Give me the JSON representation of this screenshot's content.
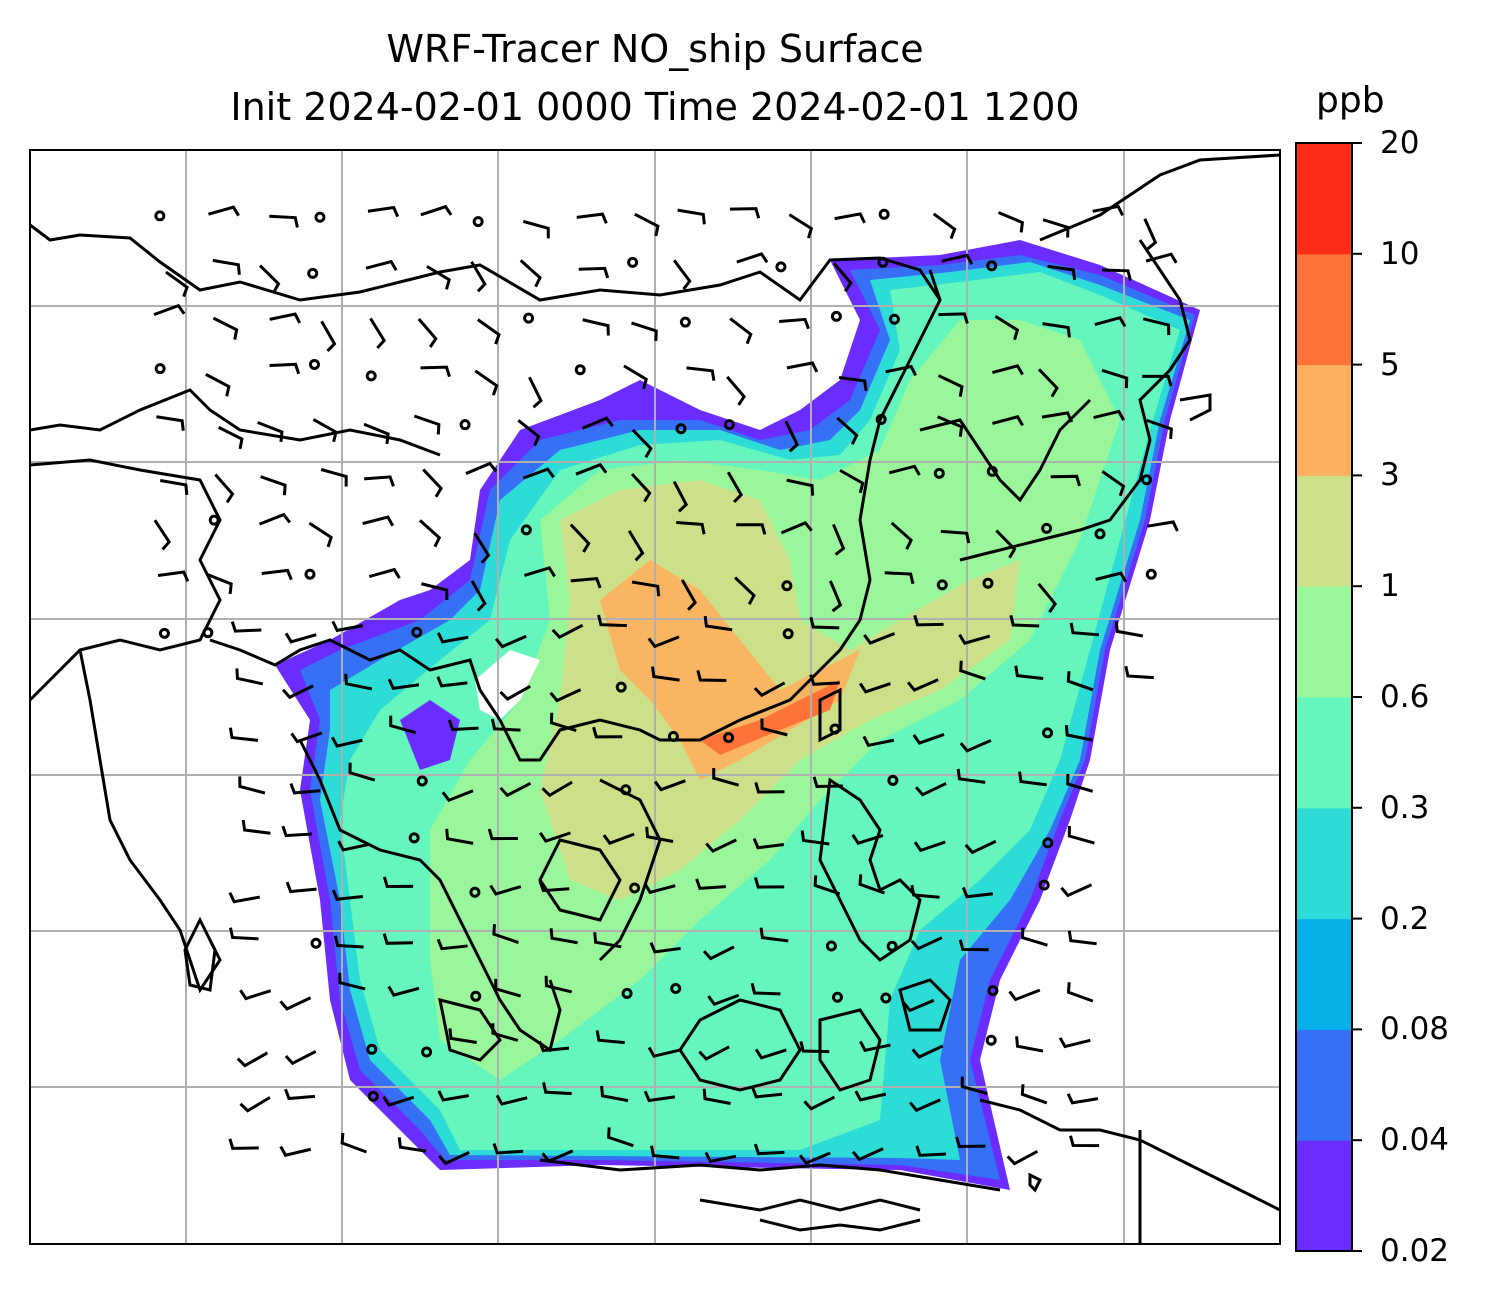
{
  "title": {
    "line1": "WRF-Tracer NO_ship Surface",
    "line2": "Init 2024-02-01 0000 Time 2024-02-01 1200"
  },
  "colorbar": {
    "units": "ppb",
    "levels": [
      "0.02",
      "0.04",
      "0.08",
      "0.2",
      "0.3",
      "0.6",
      "1",
      "3",
      "5",
      "10",
      "20"
    ],
    "colors": [
      "#6a2cff",
      "#3570f5",
      "#08b0ea",
      "#2ddcd6",
      "#64f6bd",
      "#9af69a",
      "#cce089",
      "#ffb05e",
      "#ff7339",
      "#ff2d17"
    ]
  },
  "map": {
    "field": "NO_ship surface concentration",
    "overlays": [
      "wind-barbs",
      "coastlines",
      "gridlines"
    ]
  }
}
